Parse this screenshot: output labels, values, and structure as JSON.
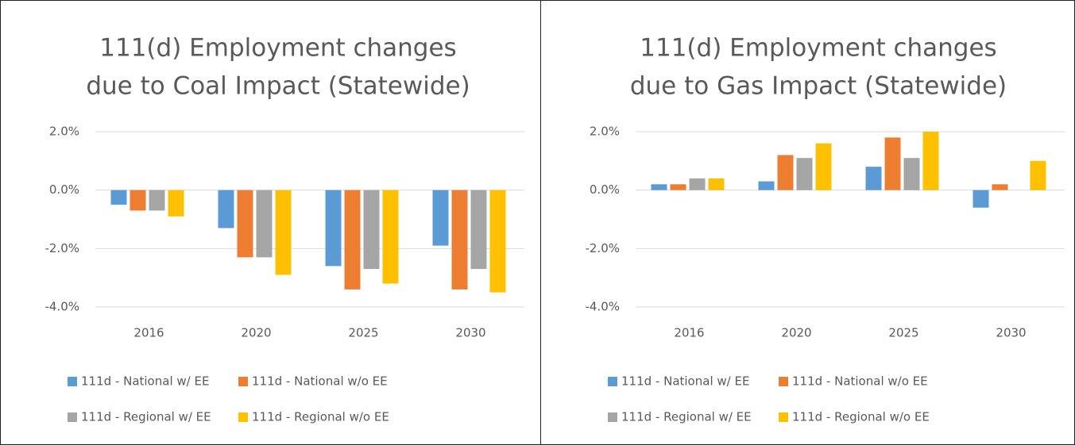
{
  "chart_data": [
    {
      "type": "bar",
      "title": [
        "111(d) Employment changes",
        "due to Coal Impact  (Statewide)"
      ],
      "categories": [
        "2016",
        "2020",
        "2025",
        "2030"
      ],
      "series": [
        {
          "name": "111d - National w/ EE",
          "color": "#5b9bd5",
          "values": [
            -0.5,
            -1.3,
            -2.6,
            -1.9
          ]
        },
        {
          "name": "111d - National w/o EE",
          "color": "#ed7d31",
          "values": [
            -0.7,
            -2.3,
            -3.4,
            -3.4
          ]
        },
        {
          "name": "111d - Regional w/ EE",
          "color": "#a5a5a5",
          "values": [
            -0.7,
            -2.3,
            -2.7,
            -2.7
          ]
        },
        {
          "name": "111d - Regional w/o EE",
          "color": "#ffc000",
          "values": [
            -0.9,
            -2.9,
            -3.2,
            -3.5
          ]
        }
      ],
      "ylim": [
        -4,
        2
      ],
      "yticks": [
        {
          "value": -4,
          "label": "-4.0%"
        },
        {
          "value": -2,
          "label": "-2.0%"
        },
        {
          "value": 0,
          "label": "0.0%"
        },
        {
          "value": 2,
          "label": "2.0%"
        }
      ],
      "grid": true,
      "legend": "bottom"
    },
    {
      "type": "bar",
      "title": [
        "111(d) Employment changes",
        "due to Gas Impact (Statewide)"
      ],
      "categories": [
        "2016",
        "2020",
        "2025",
        "2030"
      ],
      "series": [
        {
          "name": "111d - National w/ EE",
          "color": "#5b9bd5",
          "values": [
            0.2,
            0.3,
            0.8,
            -0.6
          ]
        },
        {
          "name": "111d - National w/o EE",
          "color": "#ed7d31",
          "values": [
            0.2,
            1.2,
            1.8,
            0.2
          ]
        },
        {
          "name": "111d - Regional w/ EE",
          "color": "#a5a5a5",
          "values": [
            0.4,
            1.1,
            1.1,
            0
          ]
        },
        {
          "name": "111d - Regional w/o EE",
          "color": "#ffc000",
          "values": [
            0.4,
            1.6,
            2.0,
            1.0
          ]
        }
      ],
      "ylim": [
        -4,
        2
      ],
      "yticks": [
        {
          "value": -4,
          "label": "-4.0%"
        },
        {
          "value": -2,
          "label": "-2.0%"
        },
        {
          "value": 0,
          "label": "0.0%"
        },
        {
          "value": 2,
          "label": "2.0%"
        }
      ],
      "grid": true,
      "legend": "bottom"
    }
  ]
}
